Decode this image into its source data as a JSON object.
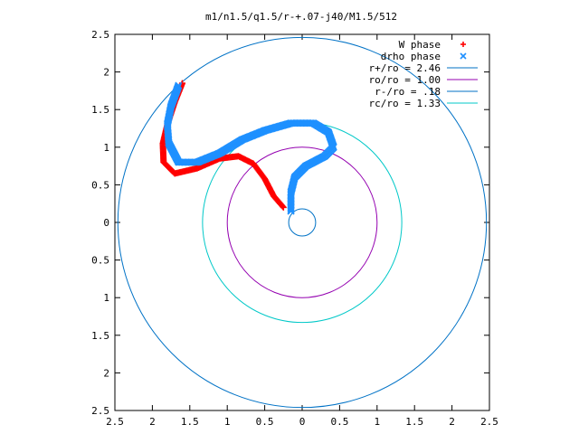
{
  "chart_data": {
    "type": "scatter",
    "title": "m1/n1.5/q1.5/r-+.07-j40/M1.5/512",
    "xlim": [
      -2.5,
      2.5
    ],
    "ylim": [
      -2.5,
      2.5
    ],
    "x_ticks": [
      -2.5,
      -2,
      -1.5,
      -1,
      -0.5,
      0,
      0.5,
      1,
      1.5,
      2,
      2.5
    ],
    "y_ticks": [
      -2.5,
      -2,
      -1.5,
      -1,
      -0.5,
      0,
      0.5,
      1,
      1.5,
      2,
      2.5
    ],
    "x_tick_labels": [
      "2.5",
      "2",
      "1.5",
      "1",
      "0.5",
      "0",
      "0.5",
      "1",
      "1.5",
      "2",
      "2.5"
    ],
    "y_tick_labels": [
      "2.5",
      "2",
      "1.5",
      "1",
      "0.5",
      "0",
      "0.5",
      "1",
      "1.5",
      "2",
      "2.5"
    ],
    "legend_position": "top-right",
    "series": [
      {
        "name": "W phase",
        "marker": "+",
        "color": "#ff0000",
        "points": [
          [
            -1.6,
            1.85
          ],
          [
            -1.7,
            1.6
          ],
          [
            -1.8,
            1.3
          ],
          [
            -1.86,
            1.05
          ],
          [
            -1.85,
            0.8
          ],
          [
            -1.7,
            0.65
          ],
          [
            -1.4,
            0.72
          ],
          [
            -1.1,
            0.85
          ],
          [
            -0.85,
            0.88
          ],
          [
            -0.65,
            0.78
          ],
          [
            -0.5,
            0.58
          ],
          [
            -0.38,
            0.35
          ],
          [
            -0.25,
            0.2
          ]
        ]
      },
      {
        "name": "drho phase",
        "marker": "x",
        "color": "#1e90ff",
        "points": [
          [
            -1.65,
            1.82
          ],
          [
            -1.75,
            1.55
          ],
          [
            -1.8,
            1.3
          ],
          [
            -1.78,
            1.05
          ],
          [
            -1.65,
            0.8
          ],
          [
            -1.4,
            0.8
          ],
          [
            -1.1,
            0.92
          ],
          [
            -0.8,
            1.1
          ],
          [
            -0.5,
            1.22
          ],
          [
            -0.15,
            1.32
          ],
          [
            0.15,
            1.32
          ],
          [
            0.35,
            1.2
          ],
          [
            0.42,
            1.0
          ],
          [
            0.3,
            0.88
          ],
          [
            0.05,
            0.75
          ],
          [
            -0.1,
            0.6
          ],
          [
            -0.15,
            0.4
          ],
          [
            -0.15,
            0.15
          ]
        ]
      },
      {
        "name": "r+/ro = 2.46",
        "type": "circle",
        "radius": 2.46,
        "color": "#0072c6"
      },
      {
        "name": "ro/ro = 1.00",
        "type": "circle",
        "radius": 1.0,
        "color": "#9400b0"
      },
      {
        "name": "r-/ro = .18",
        "type": "circle",
        "radius": 0.18,
        "color": "#0072c6"
      },
      {
        "name": "rc/ro = 1.33",
        "type": "circle",
        "radius": 1.33,
        "color": "#00c8c8"
      }
    ]
  }
}
